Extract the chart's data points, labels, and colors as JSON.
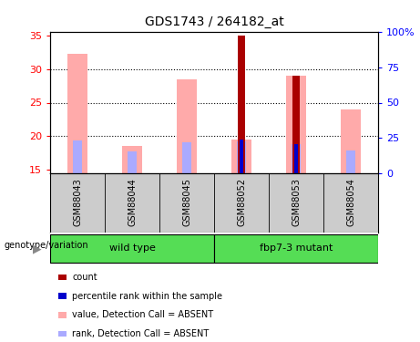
{
  "title": "GDS1743 / 264182_at",
  "samples": [
    "GSM88043",
    "GSM88044",
    "GSM88045",
    "GSM88052",
    "GSM88053",
    "GSM88054"
  ],
  "groups": [
    {
      "label": "wild type",
      "indices": [
        0,
        1,
        2
      ],
      "color": "#55dd55"
    },
    {
      "label": "fbp7-3 mutant",
      "indices": [
        3,
        4,
        5
      ],
      "color": "#55dd55"
    }
  ],
  "pink_bar_heights": [
    32.2,
    18.5,
    28.5,
    19.5,
    29.0,
    24.0
  ],
  "lightblue_bar_heights": [
    19.4,
    17.8,
    19.1,
    19.3,
    18.9,
    17.9
  ],
  "dark_red_bar_heights": [
    0,
    0,
    0,
    35.0,
    29.0,
    0
  ],
  "blue_bar_heights": [
    0,
    0,
    0,
    19.5,
    18.9,
    0
  ],
  "ylim_left": [
    14.5,
    35.5
  ],
  "ylim_right": [
    0,
    100
  ],
  "yticks_left": [
    15,
    20,
    25,
    30,
    35
  ],
  "yticks_right": [
    0,
    25,
    50,
    75,
    100
  ],
  "ytick_labels_right": [
    "0",
    "25",
    "50",
    "75",
    "100%"
  ],
  "pink_color": "#ffaaaa",
  "lightblue_color": "#aaaaff",
  "darkred_color": "#aa0000",
  "blue_color": "#0000cc",
  "bg_color": "#ffffff",
  "label_bg": "#cccccc",
  "genotype_label": "genotype/variation",
  "legend_items": [
    {
      "color": "#aa0000",
      "label": "count"
    },
    {
      "color": "#0000cc",
      "label": "percentile rank within the sample"
    },
    {
      "color": "#ffaaaa",
      "label": "value, Detection Call = ABSENT"
    },
    {
      "color": "#aaaaff",
      "label": "rank, Detection Call = ABSENT"
    }
  ]
}
